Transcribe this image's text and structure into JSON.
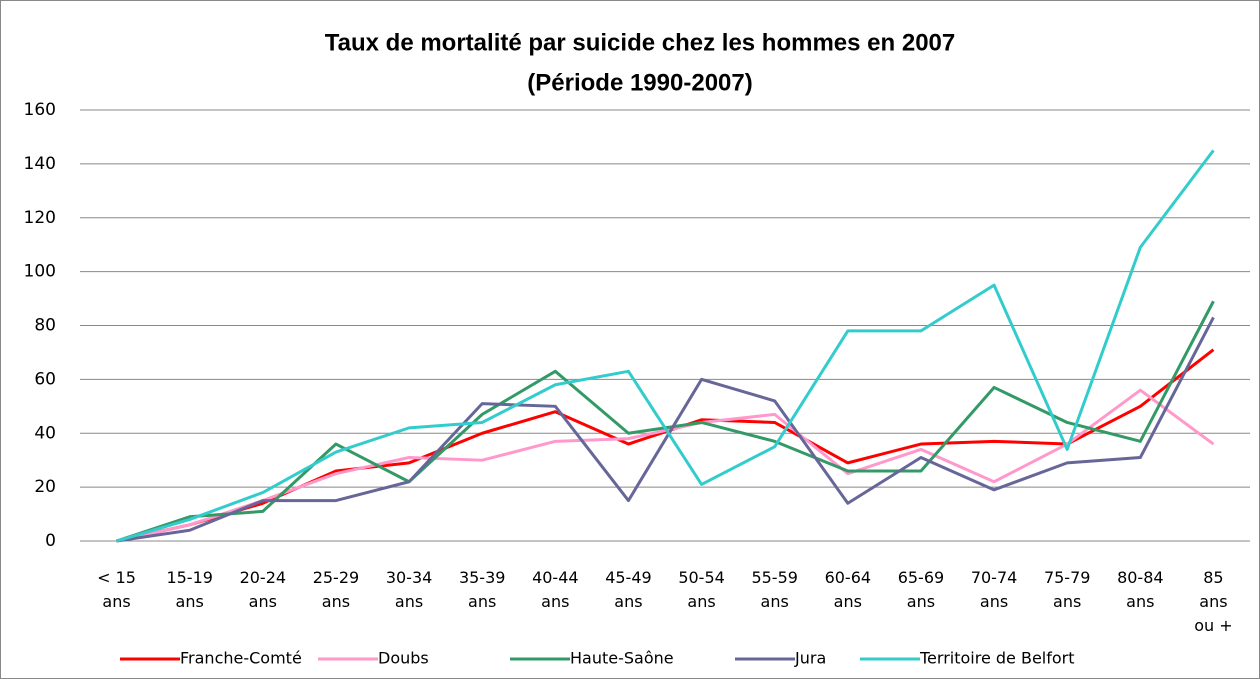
{
  "chart_data": {
    "type": "line",
    "title": "Taux de mortalité par suicide chez les hommes en 2007",
    "subtitle": "(Période 1990-2007)",
    "categories": [
      "< 15 ans",
      "15-19 ans",
      "20-24 ans",
      "25-29 ans",
      "30-34 ans",
      "35-39 ans",
      "40-44 ans",
      "45-49 ans",
      "50-54 ans",
      "55-59 ans",
      "60-64 ans",
      "65-69 ans",
      "70-74 ans",
      "75-79 ans",
      "80-84 ans",
      "85 ans ou +"
    ],
    "series": [
      {
        "name": "Franche-Comté",
        "color": "#ff0000",
        "values": [
          0,
          6,
          14,
          26,
          29,
          40,
          48,
          36,
          45,
          44,
          29,
          36,
          37,
          36,
          50,
          71
        ]
      },
      {
        "name": "Doubs",
        "color": "#ff99cc",
        "values": [
          0,
          6,
          15,
          25,
          31,
          30,
          37,
          38,
          44,
          47,
          25,
          34,
          22,
          36,
          56,
          36
        ]
      },
      {
        "name": "Haute-Saône",
        "color": "#339966",
        "values": [
          0,
          9,
          11,
          36,
          22,
          47,
          63,
          40,
          44,
          37,
          26,
          26,
          57,
          44,
          37,
          89
        ]
      },
      {
        "name": "Jura",
        "color": "#666699",
        "values": [
          0,
          4,
          15,
          15,
          22,
          51,
          50,
          15,
          60,
          52,
          14,
          31,
          19,
          29,
          31,
          83
        ]
      },
      {
        "name": "Territoire de Belfort",
        "color": "#33cccc",
        "values": [
          0,
          8,
          18,
          33,
          42,
          44,
          58,
          63,
          21,
          35,
          78,
          78,
          95,
          34,
          109,
          145
        ]
      }
    ],
    "ylim": [
      0,
      160
    ],
    "yticks": [
      0,
      20,
      40,
      60,
      80,
      100,
      120,
      140,
      160
    ],
    "grid": true
  }
}
